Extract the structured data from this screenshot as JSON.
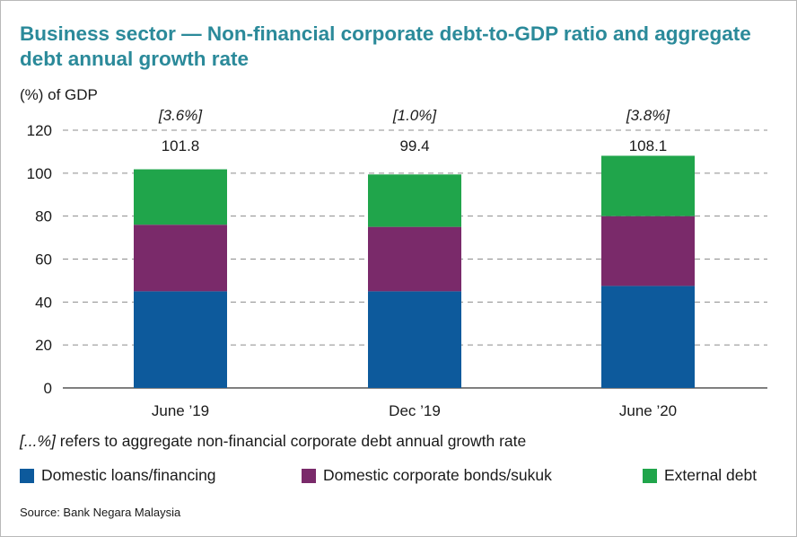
{
  "title": "Business sector — Non-financial corporate debt-to-GDP ratio and aggregate debt annual growth rate",
  "note": {
    "italic": "[...%]",
    "text": " refers to aggregate non-financial corporate debt annual growth rate"
  },
  "source": "Source: Bank Negara Malaysia",
  "chart_data": {
    "type": "bar",
    "stacked": true,
    "ylabel": "(%) of GDP",
    "ylim": [
      0,
      120
    ],
    "yticks": [
      0,
      20,
      40,
      60,
      80,
      100,
      120
    ],
    "grid": true,
    "legend_position": "bottom",
    "categories": [
      "June ’19",
      "Dec ’19",
      "June ’20"
    ],
    "series": [
      {
        "name": "Domestic loans/financing",
        "color": "#0d5a9c",
        "values": [
          45.0,
          45.0,
          47.5
        ]
      },
      {
        "name": "Domestic corporate bonds/sukuk",
        "color": "#7a2a6a",
        "values": [
          31.0,
          30.0,
          32.5
        ]
      },
      {
        "name": "External debt",
        "color": "#20a54b",
        "values": [
          25.8,
          24.4,
          28.1
        ]
      }
    ],
    "totals": [
      "101.8",
      "99.4",
      "108.1"
    ],
    "growth_rates": [
      "[3.6%]",
      "[1.0%]",
      "[3.8%]"
    ]
  }
}
